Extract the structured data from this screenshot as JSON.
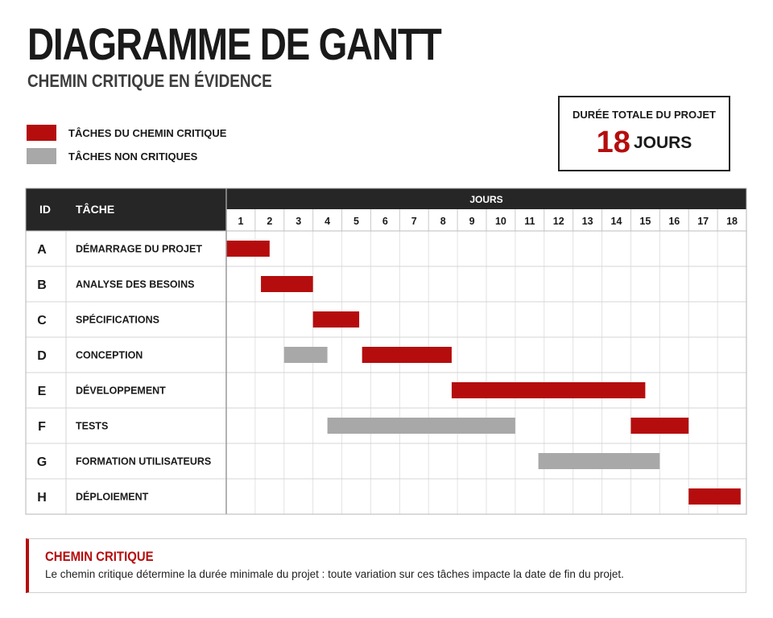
{
  "title": "DIAGRAMME DE GANTT",
  "subtitle": "CHEMIN CRITIQUE EN ÉVIDENCE",
  "legend": {
    "critical_label": "TÂCHES DU CHEMIN CRITIQUE",
    "noncritical_label": "TÂCHES NON CRITIQUES"
  },
  "summary": {
    "caption": "DURÉE TOTALE DU PROJET",
    "value": "18",
    "unit": "JOURS"
  },
  "colors": {
    "critical": "#b50d0d",
    "noncritical": "#a8a8a8",
    "header": "#262626",
    "grid": "#e2e2e2"
  },
  "chart_data": {
    "type": "gantt",
    "columns": {
      "id": "ID",
      "task": "TÂCHE",
      "timeline": "JOURS"
    },
    "days": [
      1,
      2,
      3,
      4,
      5,
      6,
      7,
      8,
      9,
      10,
      11,
      12,
      13,
      14,
      15,
      16,
      17,
      18
    ],
    "tasks": [
      {
        "id": "A",
        "name": "DÉMARRAGE DU PROJET",
        "bars": [
          {
            "start": 1,
            "end": 2.5,
            "critical": true
          }
        ]
      },
      {
        "id": "B",
        "name": "ANALYSE DES BESOINS",
        "bars": [
          {
            "start": 2.2,
            "end": 4.0,
            "critical": true
          }
        ]
      },
      {
        "id": "C",
        "name": "SPÉCIFICATIONS",
        "bars": [
          {
            "start": 4.0,
            "end": 5.6,
            "critical": true
          }
        ]
      },
      {
        "id": "D",
        "name": "CONCEPTION",
        "bars": [
          {
            "start": 3.0,
            "end": 4.5,
            "critical": false
          },
          {
            "start": 5.7,
            "end": 8.8,
            "critical": true
          }
        ]
      },
      {
        "id": "E",
        "name": "DÉVELOPPEMENT",
        "bars": [
          {
            "start": 8.8,
            "end": 15.5,
            "critical": true
          }
        ]
      },
      {
        "id": "F",
        "name": "TESTS",
        "bars": [
          {
            "start": 4.5,
            "end": 11.0,
            "critical": false
          },
          {
            "start": 15.0,
            "end": 17.0,
            "critical": true
          }
        ]
      },
      {
        "id": "G",
        "name": "FORMATION UTILISATEURS",
        "bars": [
          {
            "start": 11.8,
            "end": 16.0,
            "critical": false
          }
        ]
      },
      {
        "id": "H",
        "name": "DÉPLOIEMENT",
        "bars": [
          {
            "start": 17.0,
            "end": 18.8,
            "critical": true
          }
        ]
      }
    ]
  },
  "note": {
    "title": "CHEMIN CRITIQUE",
    "text": "Le chemin critique détermine la durée minimale du projet : toute variation sur ces tâches impacte la date de fin du projet."
  }
}
